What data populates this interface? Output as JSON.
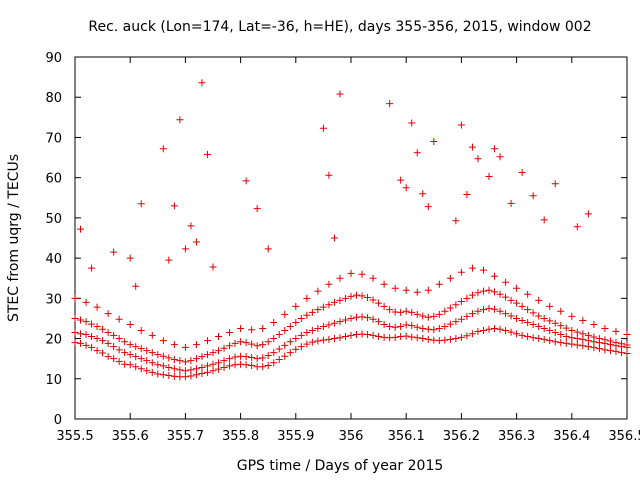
{
  "chart_data": {
    "type": "scatter",
    "title": "Rec. auck (Lon=174, Lat=-36, h=HE), days 355-356, 2015, window 002",
    "xlabel": "GPS time / Days of year 2015",
    "ylabel": "STEC from uqrg / TECUs",
    "xlim": [
      355.5,
      356.5
    ],
    "ylim": [
      0,
      90
    ],
    "x_ticks": [
      "355.5",
      "355.6",
      "355.7",
      "355.8",
      "355.9",
      "356",
      "356.1",
      "356.2",
      "356.3",
      "356.4",
      "356.5"
    ],
    "y_ticks": [
      "0",
      "10",
      "20",
      "30",
      "40",
      "50",
      "60",
      "70",
      "80",
      "90"
    ],
    "grid": false,
    "marker": "plus",
    "color": "#e00000",
    "series": [
      {
        "x": [
          355.5,
          355.51,
          355.52,
          355.53,
          355.54,
          355.55,
          355.56,
          355.57,
          355.58,
          355.59,
          355.6,
          355.61,
          355.62,
          355.63,
          355.64,
          355.65,
          355.66,
          355.67,
          355.68,
          355.69,
          355.7,
          355.71,
          355.72,
          355.73,
          355.74,
          355.75,
          355.76,
          355.77,
          355.78,
          355.79,
          355.8,
          355.81,
          355.82,
          355.83,
          355.84,
          355.85,
          355.86,
          355.87,
          355.88,
          355.89,
          355.9,
          355.91,
          355.92,
          355.93,
          355.94,
          355.95,
          355.96,
          355.97,
          355.98,
          355.99,
          356.0,
          356.01,
          356.02,
          356.03,
          356.04,
          356.05,
          356.06,
          356.07,
          356.08,
          356.09,
          356.1,
          356.11,
          356.12,
          356.13,
          356.14,
          356.15,
          356.16,
          356.17,
          356.18,
          356.19,
          356.2,
          356.21,
          356.22,
          356.23,
          356.24,
          356.25,
          356.26,
          356.27,
          356.28,
          356.29,
          356.3,
          356.31,
          356.32,
          356.33,
          356.34,
          356.35,
          356.36,
          356.37,
          356.38,
          356.39,
          356.4,
          356.41,
          356.42,
          356.43,
          356.44,
          356.45,
          356.46,
          356.47,
          356.48,
          356.49,
          356.5,
          355.5,
          355.51,
          355.52,
          355.53,
          355.54,
          355.55,
          355.56,
          355.57,
          355.58,
          355.59,
          355.6,
          355.61,
          355.62,
          355.63,
          355.64,
          355.65,
          355.66,
          355.67,
          355.68,
          355.69,
          355.7,
          355.71,
          355.72,
          355.73,
          355.74,
          355.75,
          355.76,
          355.77,
          355.78,
          355.79,
          355.8,
          355.81,
          355.82,
          355.83,
          355.84,
          355.85,
          355.86,
          355.87,
          355.88,
          355.89,
          355.9,
          355.91,
          355.92,
          355.93,
          355.94,
          355.95,
          355.96,
          355.97,
          355.98,
          355.99,
          356.0,
          356.01,
          356.02,
          356.03,
          356.04,
          356.05,
          356.06,
          356.07,
          356.08,
          356.09,
          356.1,
          356.11,
          356.12,
          356.13,
          356.14,
          356.15,
          356.16,
          356.17,
          356.18,
          356.19,
          356.2,
          356.21,
          356.22,
          356.23,
          356.24,
          356.25,
          356.26,
          356.27,
          356.28,
          356.29,
          356.3,
          356.31,
          356.32,
          356.33,
          356.34,
          356.35,
          356.36,
          356.37,
          356.38,
          356.39,
          356.4,
          356.41,
          356.42,
          356.43,
          356.44,
          356.45,
          356.46,
          356.47,
          356.48,
          356.49,
          356.5,
          355.5,
          355.51,
          355.52,
          355.53,
          355.54,
          355.55,
          355.56,
          355.57,
          355.58,
          355.59,
          355.6,
          355.61,
          355.62,
          355.63,
          355.64,
          355.65,
          355.66,
          355.67,
          355.68,
          355.69,
          355.7,
          355.71,
          355.72,
          355.73,
          355.74,
          355.75,
          355.76,
          355.77,
          355.78,
          355.79,
          355.8,
          355.81,
          355.82,
          355.83,
          355.84,
          355.85,
          355.86,
          355.87,
          355.88,
          355.89,
          355.9,
          355.91,
          355.92,
          355.93,
          355.94,
          355.95,
          355.96,
          355.97,
          355.98,
          355.99,
          356.0,
          356.01,
          356.02,
          356.03,
          356.04,
          356.05,
          356.06,
          356.07,
          356.08,
          356.09,
          356.1,
          356.11,
          356.12,
          356.13,
          356.14,
          356.15,
          356.16,
          356.17,
          356.18,
          356.19,
          356.2,
          356.21,
          356.22,
          356.23,
          356.24,
          356.25,
          356.26,
          356.27,
          356.28,
          356.29,
          356.3,
          356.31,
          356.32,
          356.33,
          356.34,
          356.35,
          356.36,
          356.37,
          356.38,
          356.39,
          356.4,
          356.41,
          356.42,
          356.43,
          356.44,
          356.45,
          356.46,
          356.47,
          356.48,
          356.49,
          356.5,
          355.5,
          355.52,
          355.54,
          355.56,
          355.58,
          355.6,
          355.62,
          355.64,
          355.66,
          355.68,
          355.7,
          355.72,
          355.74,
          355.76,
          355.78,
          355.8,
          355.82,
          355.84,
          355.86,
          355.88,
          355.9,
          355.92,
          355.94,
          355.96,
          355.98,
          356.0,
          356.02,
          356.04,
          356.06,
          356.08,
          356.1,
          356.12,
          356.14,
          356.16,
          356.18,
          356.2,
          356.22,
          356.24,
          356.26,
          356.28,
          356.3,
          356.32,
          356.34,
          356.36,
          356.38,
          356.4,
          356.42,
          356.44,
          356.46,
          356.48,
          356.5,
          355.51,
          355.53,
          355.57,
          355.6,
          355.61,
          355.62,
          355.66,
          355.67,
          355.68,
          355.69,
          355.7,
          355.71,
          355.72,
          355.73,
          355.74,
          355.75,
          355.81,
          355.83,
          355.85,
          355.95,
          355.96,
          355.97,
          355.98,
          356.07,
          356.09,
          356.1,
          356.11,
          356.12,
          356.13,
          356.14,
          356.15,
          356.19,
          356.2,
          356.21,
          356.22,
          356.23,
          356.25,
          356.26,
          356.27,
          356.29,
          356.31,
          356.33,
          356.35,
          356.37,
          356.41,
          356.43
        ],
        "y": [
          19.0,
          18.8,
          18.3,
          17.8,
          17.0,
          16.4,
          15.5,
          15.0,
          14.3,
          13.6,
          13.5,
          13.0,
          12.5,
          12.0,
          11.6,
          11.2,
          11.0,
          10.8,
          10.6,
          10.5,
          10.5,
          10.7,
          11.0,
          11.3,
          11.6,
          12.0,
          12.4,
          12.8,
          13.2,
          13.5,
          13.6,
          13.5,
          13.3,
          13.0,
          13.0,
          13.3,
          14.0,
          14.8,
          15.6,
          16.5,
          17.3,
          18.0,
          18.6,
          19.1,
          19.4,
          19.6,
          19.8,
          20.0,
          20.2,
          20.5,
          20.8,
          21.0,
          21.1,
          21.0,
          20.8,
          20.5,
          20.3,
          20.2,
          20.3,
          20.5,
          20.6,
          20.4,
          20.2,
          20.0,
          19.8,
          19.6,
          19.5,
          19.6,
          19.8,
          20.0,
          20.3,
          20.7,
          21.2,
          21.8,
          22.0,
          22.3,
          22.5,
          22.3,
          22.0,
          21.6,
          21.2,
          20.8,
          20.5,
          20.2,
          20.0,
          19.8,
          19.5,
          19.2,
          19.0,
          18.8,
          18.6,
          18.4,
          18.2,
          18.0,
          17.8,
          17.5,
          17.2,
          17.0,
          16.8,
          16.5,
          16.3,
          21.5,
          21.2,
          21.0,
          20.5,
          20.0,
          19.5,
          18.8,
          18.0,
          17.2,
          16.5,
          16.0,
          15.5,
          15.0,
          14.5,
          14.0,
          13.5,
          13.2,
          12.8,
          12.5,
          12.2,
          12.0,
          12.2,
          12.5,
          12.8,
          13.2,
          13.6,
          14.0,
          14.5,
          15.0,
          15.4,
          15.6,
          15.5,
          15.3,
          15.0,
          15.2,
          15.8,
          16.5,
          17.4,
          18.3,
          19.2,
          20.0,
          20.8,
          21.5,
          22.0,
          22.5,
          23.0,
          23.4,
          23.8,
          24.2,
          24.6,
          25.0,
          25.3,
          25.4,
          25.2,
          24.8,
          24.2,
          23.5,
          23.0,
          22.8,
          23.0,
          23.4,
          23.2,
          22.8,
          22.5,
          22.3,
          22.2,
          22.5,
          23.0,
          23.6,
          24.2,
          24.8,
          25.5,
          26.2,
          26.8,
          27.2,
          27.5,
          27.3,
          26.8,
          26.2,
          25.6,
          25.0,
          24.5,
          24.0,
          23.5,
          23.0,
          22.5,
          22.0,
          21.5,
          21.0,
          20.5,
          20.2,
          20.0,
          19.8,
          19.5,
          19.2,
          19.0,
          18.8,
          18.5,
          18.2,
          18.0,
          17.8,
          25.0,
          24.6,
          24.2,
          23.6,
          23.0,
          22.3,
          21.5,
          20.8,
          20.0,
          19.2,
          18.5,
          18.0,
          17.5,
          17.0,
          16.5,
          16.0,
          15.6,
          15.2,
          14.8,
          14.5,
          14.2,
          14.5,
          15.0,
          15.5,
          16.0,
          16.5,
          17.0,
          17.6,
          18.2,
          18.8,
          19.2,
          19.0,
          18.6,
          18.2,
          18.5,
          19.2,
          20.0,
          21.0,
          22.0,
          23.0,
          24.0,
          25.0,
          25.8,
          26.5,
          27.2,
          27.8,
          28.4,
          29.0,
          29.5,
          30.0,
          30.5,
          30.8,
          30.6,
          30.2,
          29.6,
          28.8,
          28.0,
          27.2,
          26.6,
          26.5,
          26.8,
          26.5,
          26.0,
          25.6,
          25.3,
          25.5,
          26.0,
          26.8,
          27.6,
          28.4,
          29.2,
          30.0,
          30.8,
          31.4,
          31.8,
          32.0,
          31.6,
          31.0,
          30.3,
          29.5,
          28.8,
          28.0,
          27.2,
          26.4,
          25.6,
          25.0,
          24.4,
          23.8,
          23.2,
          22.6,
          22.0,
          21.6,
          21.2,
          20.8,
          20.4,
          20.0,
          19.7,
          19.4,
          19.0,
          18.7,
          18.4,
          30.0,
          29.0,
          27.8,
          26.2,
          24.8,
          23.5,
          22.0,
          20.8,
          19.5,
          18.5,
          17.8,
          18.5,
          19.5,
          20.5,
          21.5,
          22.5,
          22.2,
          22.5,
          24.0,
          26.0,
          28.0,
          30.0,
          31.8,
          33.5,
          35.0,
          36.2,
          36.0,
          35.0,
          33.5,
          32.5,
          32.0,
          31.5,
          32.0,
          33.5,
          35.0,
          36.5,
          37.5,
          37.0,
          35.5,
          34.0,
          32.5,
          31.0,
          29.5,
          28.0,
          26.8,
          25.5,
          24.5,
          23.5,
          22.5,
          21.8,
          21.0,
          47.2,
          37.5,
          41.5,
          40.0,
          33.0,
          53.5,
          67.2,
          39.5,
          53.0,
          74.4,
          42.3,
          48.0,
          44.0,
          83.6,
          65.8,
          37.8,
          59.2,
          52.3,
          42.3,
          72.3,
          60.6,
          45.0,
          80.8,
          78.4,
          59.4,
          57.5,
          73.6,
          66.2,
          56.0,
          52.8,
          69.0,
          49.3,
          73.1,
          55.8,
          67.6,
          64.7,
          60.3,
          67.2,
          65.2,
          53.6,
          61.3,
          55.5,
          49.5,
          58.5,
          47.8,
          51.0
        ]
      }
    ]
  }
}
